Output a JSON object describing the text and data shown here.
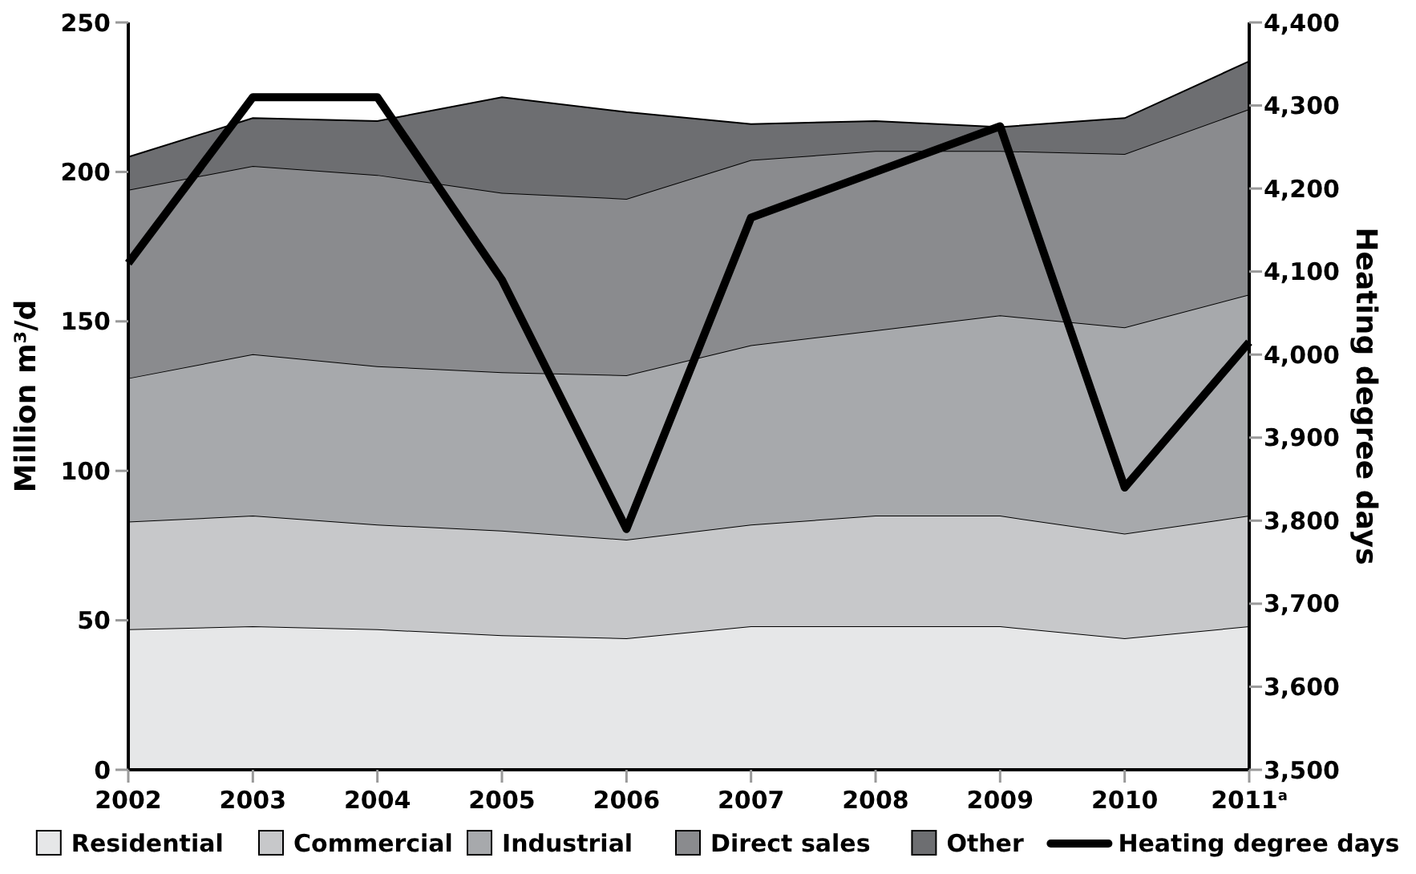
{
  "chart_data": {
    "type": "area",
    "stacked": true,
    "xlabel": null,
    "ylabel": "Million m³/d",
    "y2label": "Heating degree days",
    "categories": [
      "2002",
      "2003",
      "2004",
      "2005",
      "2006",
      "2007",
      "2008",
      "2009",
      "2010",
      "2011$^{a}$"
    ],
    "series": [
      {
        "name": "Residential",
        "color": "#e6e7e8",
        "values": [
          47,
          48,
          47,
          45,
          44,
          48,
          48,
          48,
          44,
          48
        ]
      },
      {
        "name": "Commercial",
        "color": "#c7c8ca",
        "values": [
          36,
          37,
          35,
          35,
          33,
          34,
          37,
          37,
          35,
          37
        ]
      },
      {
        "name": "Industrial",
        "color": "#a7a9ac",
        "values": [
          48,
          54,
          53,
          53,
          55,
          60,
          62,
          67,
          69,
          74
        ]
      },
      {
        "name": "Direct sales",
        "color": "#8a8b8e",
        "values": [
          63,
          63,
          64,
          60,
          59,
          62,
          60,
          55,
          58,
          62
        ]
      },
      {
        "name": "Other",
        "color": "#6d6e71",
        "values": [
          11,
          16,
          18,
          32,
          29,
          12,
          10,
          8,
          12,
          16
        ]
      },
      {
        "name": "Heating degree days",
        "type": "line",
        "axis": "y2",
        "color": "#000000",
        "values": [
          4110,
          4310,
          4310,
          4090,
          3790,
          4165,
          4220,
          4275,
          3840,
          4015
        ]
      }
    ],
    "ylim": [
      0,
      250
    ],
    "yticks": [
      0,
      50,
      100,
      150,
      200,
      250
    ],
    "y2lim": [
      3500,
      4400
    ],
    "y2ticks": [
      {
        "value": 3500,
        "label": "3,500"
      },
      {
        "value": 3600,
        "label": "3,600"
      },
      {
        "value": 3700,
        "label": "3,700"
      },
      {
        "value": 3800,
        "label": "3,800"
      },
      {
        "value": 3900,
        "label": "3,900"
      },
      {
        "value": 4000,
        "label": "4,000"
      },
      {
        "value": 4100,
        "label": "4,100"
      },
      {
        "value": 4200,
        "label": "4,200"
      },
      {
        "value": 4300,
        "label": "4,300"
      },
      {
        "value": 4400,
        "label": "4,400"
      }
    ],
    "legend": "bottom",
    "grid": false,
    "marker": "none",
    "line_style": "solid"
  }
}
